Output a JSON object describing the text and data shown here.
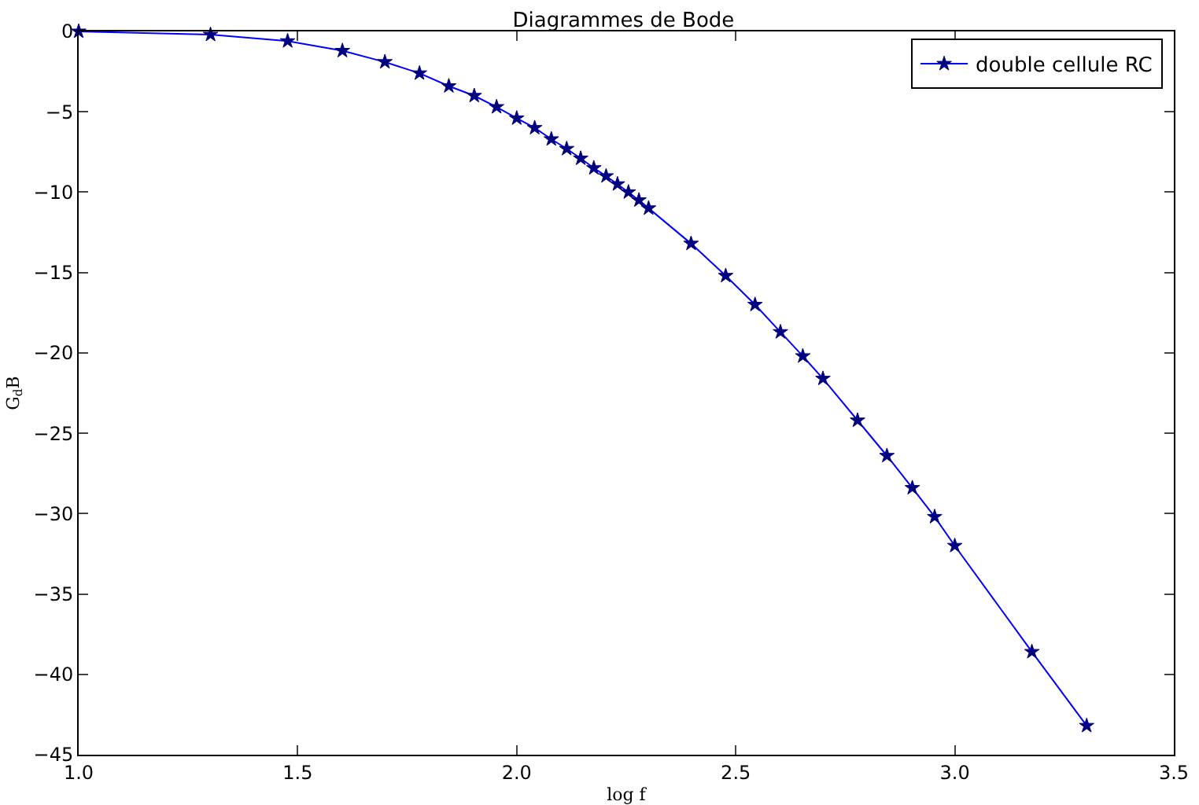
{
  "chart_data": {
    "type": "line",
    "title": "Diagrammes de Bode",
    "xlabel": "log f",
    "ylabel": "G$_{d}$B",
    "x": [
      1.0,
      1.301,
      1.477,
      1.602,
      1.699,
      1.778,
      1.845,
      1.903,
      1.954,
      2.0,
      2.041,
      2.079,
      2.114,
      2.146,
      2.176,
      2.204,
      2.23,
      2.255,
      2.279,
      2.301,
      2.398,
      2.477,
      2.544,
      2.602,
      2.653,
      2.699,
      2.778,
      2.845,
      2.903,
      2.954,
      3.0,
      3.176,
      3.301
    ],
    "series": [
      {
        "name": "double cellule RC",
        "color": "#0000ff",
        "values": [
          0,
          -0.2,
          -0.6,
          -1.2,
          -1.9,
          -2.6,
          -3.4,
          -4.0,
          -4.7,
          -5.4,
          -6.0,
          -6.7,
          -7.3,
          -7.9,
          -8.5,
          -9.0,
          -9.5,
          -10.0,
          -10.5,
          -11.0,
          -13.2,
          -15.2,
          -17.0,
          -18.7,
          -20.2,
          -21.6,
          -24.2,
          -26.4,
          -28.4,
          -30.2,
          -32.0,
          -38.6,
          -43.2
        ]
      }
    ],
    "xlim": [
      1.0,
      3.5
    ],
    "xticks": [
      {
        "value": 1.0,
        "label": "1.0"
      },
      {
        "value": 1.5,
        "label": "1.5"
      },
      {
        "value": 2.0,
        "label": "2.0"
      },
      {
        "value": 2.5,
        "label": "2.5"
      },
      {
        "value": 3.0,
        "label": "3.0"
      },
      {
        "value": 3.5,
        "label": "3.5"
      }
    ],
    "ylim": [
      -45,
      0
    ],
    "yticks": [
      -45,
      -40,
      -35,
      -30,
      -25,
      -20,
      -15,
      -10,
      -5,
      0
    ],
    "grid": false,
    "legend": "top right",
    "marker": "star",
    "line_style": "solid"
  }
}
